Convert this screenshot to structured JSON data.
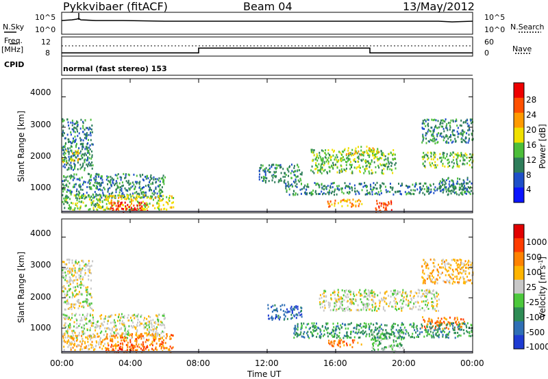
{
  "header": {
    "station": "Pykkvibaer (fitACF)",
    "beam": "Beam 04",
    "date": "13/May/2012"
  },
  "nsky_panel": {
    "left_label": "N.Sky",
    "right_label": "N.Search",
    "left_ticks": [
      "10^5",
      "10^0"
    ],
    "right_ticks": [
      "10^5",
      "10^0"
    ]
  },
  "freq_panel": {
    "left_label_1": "Freq.",
    "left_label_2": "[MHz]",
    "right_label": "Nave",
    "left_ticks": [
      "12",
      "8"
    ],
    "right_ticks": [
      "60",
      "0"
    ],
    "nave_steps": [
      {
        "t_start": 0,
        "t_end": 8,
        "value": 10
      },
      {
        "t_start": 8,
        "t_end": 18,
        "value": 25
      },
      {
        "t_start": 18,
        "t_end": 24,
        "value": 10
      }
    ]
  },
  "cpid": {
    "label": "CPID",
    "text": "normal (fast stereo) 153"
  },
  "xaxis": {
    "label": "Time UT",
    "ticks": [
      "00:00",
      "04:00",
      "08:00",
      "12:00",
      "16:00",
      "20:00",
      "00:00"
    ]
  },
  "chart_data": [
    {
      "type": "heatmap",
      "ylabel": "Slant Range [km]",
      "ylim": [
        180,
        4600
      ],
      "yticks": [
        1000,
        2000,
        3000,
        4000
      ],
      "xlim": [
        0,
        24
      ],
      "colorbar": {
        "label": "Power [dB]",
        "ticks": [
          "4",
          "8",
          "12",
          "16",
          "20",
          "24",
          "28"
        ],
        "colors": [
          "#0a14ff",
          "#1e4fc8",
          "#2e7d5a",
          "#4cbe3a",
          "#f0e000",
          "#ff9a00",
          "#ff5000",
          "#ee0000"
        ]
      },
      "regions": [
        {
          "t": [
            0,
            1.8
          ],
          "r": [
            1600,
            3300
          ],
          "level": 2
        },
        {
          "t": [
            0,
            1
          ],
          "r": [
            1850,
            2300
          ],
          "level": 4
        },
        {
          "t": [
            0,
            6
          ],
          "r": [
            700,
            1500
          ],
          "level": 2
        },
        {
          "t": [
            2,
            6.5
          ],
          "r": [
            300,
            800
          ],
          "level": 4
        },
        {
          "t": [
            2.8,
            5
          ],
          "r": [
            250,
            550
          ],
          "level": 7
        },
        {
          "t": [
            0,
            2.5
          ],
          "r": [
            300,
            800
          ],
          "level": 3
        },
        {
          "t": [
            13,
            24
          ],
          "r": [
            800,
            1200
          ],
          "level": 2
        },
        {
          "t": [
            14.5,
            19.5
          ],
          "r": [
            1500,
            2300
          ],
          "level": 3
        },
        {
          "t": [
            16.5,
            18.5
          ],
          "r": [
            2100,
            2400
          ],
          "level": 4
        },
        {
          "t": [
            15.5,
            17.5
          ],
          "r": [
            400,
            650
          ],
          "level": 5
        },
        {
          "t": [
            18.3,
            19.3
          ],
          "r": [
            250,
            650
          ],
          "level": 6
        },
        {
          "t": [
            21,
            24
          ],
          "r": [
            1700,
            2200
          ],
          "level": 3
        },
        {
          "t": [
            21,
            24
          ],
          "r": [
            2500,
            3300
          ],
          "level": 2
        },
        {
          "t": [
            22,
            23.8
          ],
          "r": [
            900,
            1400
          ],
          "level": 2
        },
        {
          "t": [
            11.5,
            14
          ],
          "r": [
            1200,
            1800
          ],
          "level": 2
        }
      ]
    },
    {
      "type": "heatmap",
      "ylabel": "Slant Range [km]",
      "ylim": [
        180,
        4600
      ],
      "yticks": [
        1000,
        2000,
        3000,
        4000
      ],
      "xlim": [
        0,
        24
      ],
      "colorbar": {
        "label": "Velocity [m s^-1]",
        "ticks": [
          "1000",
          "500",
          "100",
          "25",
          "-25",
          "-100",
          "-500",
          "-1000"
        ],
        "colors": [
          "#1e3cd2",
          "#2f6fb5",
          "#2e8c55",
          "#4cc83c",
          "#c8c8c8",
          "#ffb400",
          "#ff8200",
          "#ff3c00",
          "#e10000"
        ]
      },
      "regions": [
        {
          "t": [
            0,
            1.8
          ],
          "r": [
            1600,
            3300
          ],
          "level": 4
        },
        {
          "t": [
            0,
            6
          ],
          "r": [
            700,
            1500
          ],
          "level": 4
        },
        {
          "t": [
            2.5,
            6.5
          ],
          "r": [
            250,
            850
          ],
          "level": 6
        },
        {
          "t": [
            3.2,
            5
          ],
          "r": [
            250,
            500
          ],
          "level": 7
        },
        {
          "t": [
            0,
            2.5
          ],
          "r": [
            300,
            800
          ],
          "level": 5
        },
        {
          "t": [
            15,
            22
          ],
          "r": [
            1600,
            2300
          ],
          "level": 4
        },
        {
          "t": [
            12,
            14
          ],
          "r": [
            1300,
            1800
          ],
          "level": 1
        },
        {
          "t": [
            15.5,
            17.5
          ],
          "r": [
            400,
            650
          ],
          "level": 6
        },
        {
          "t": [
            18,
            20
          ],
          "r": [
            250,
            1000
          ],
          "level": 3
        },
        {
          "t": [
            21,
            23.5
          ],
          "r": [
            1000,
            1400
          ],
          "level": 6
        },
        {
          "t": [
            21,
            24
          ],
          "r": [
            2500,
            3300
          ],
          "level": 5
        },
        {
          "t": [
            13.5,
            24
          ],
          "r": [
            700,
            1200
          ],
          "level": 2
        }
      ]
    }
  ]
}
